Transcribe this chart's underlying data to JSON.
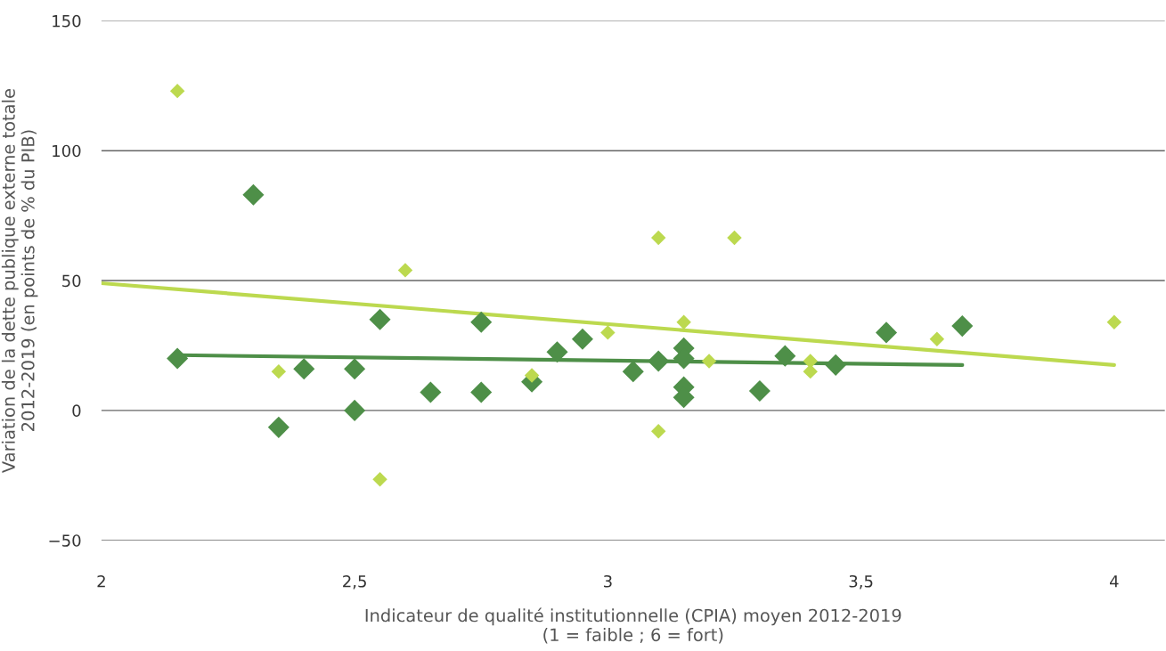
{
  "chart_data": {
    "type": "scatter",
    "xlabel": "Indicateur de qualité institutionnelle (CPIA) moyen 2012-2019\n(1 = faible ; 6 = fort)",
    "ylabel": "Variation de la dette publique externe totale\n2012-2019 (en points de % du PIB)",
    "xlim": [
      2,
      4.1
    ],
    "ylim": [
      -50,
      150
    ],
    "xticks": [
      {
        "value": 2,
        "label": "2"
      },
      {
        "value": 2.5,
        "label": "2,5"
      },
      {
        "value": 3,
        "label": "3"
      },
      {
        "value": 3.5,
        "label": "3,5"
      },
      {
        "value": 4,
        "label": "4"
      }
    ],
    "yticks": [
      {
        "value": -50,
        "label": "−50"
      },
      0,
      50,
      100,
      150
    ],
    "grid": "y",
    "marker": "diamond",
    "series": [
      {
        "color": "#4e8f48",
        "x": [
          2.15,
          2.3,
          2.35,
          2.4,
          2.5,
          2.5,
          2.55,
          2.65,
          2.75,
          2.75,
          2.85,
          2.9,
          2.95,
          3.05,
          3.1,
          3.15,
          3.15,
          3.15,
          3.15,
          3.3,
          3.35,
          3.45,
          3.55,
          3.7
        ],
        "values": [
          20,
          83,
          -6.5,
          16,
          16,
          0,
          35,
          7,
          34,
          7,
          11,
          22.5,
          27.5,
          15,
          19,
          24,
          20,
          9,
          5,
          7.5,
          21,
          17.5,
          30,
          32.5
        ]
      },
      {
        "color": "#bcd94f",
        "x": [
          2.15,
          2.35,
          2.55,
          2.6,
          2.85,
          3.0,
          3.1,
          3.1,
          3.15,
          3.2,
          3.25,
          3.4,
          3.4,
          3.65,
          4.0
        ],
        "values": [
          123,
          15,
          -26.5,
          54,
          13.5,
          30,
          66.5,
          -8,
          34,
          19,
          66.5,
          19,
          15,
          27.5,
          34
        ]
      },
      {
        "type": "line",
        "marker": "none",
        "color": "#bcd94f",
        "x": [
          2,
          4
        ],
        "values": [
          49,
          17.5
        ]
      },
      {
        "type": "line",
        "marker": "none",
        "color": "#4e8f48",
        "x": [
          2.15,
          3.7
        ],
        "values": [
          21.3,
          17.5
        ]
      }
    ]
  }
}
